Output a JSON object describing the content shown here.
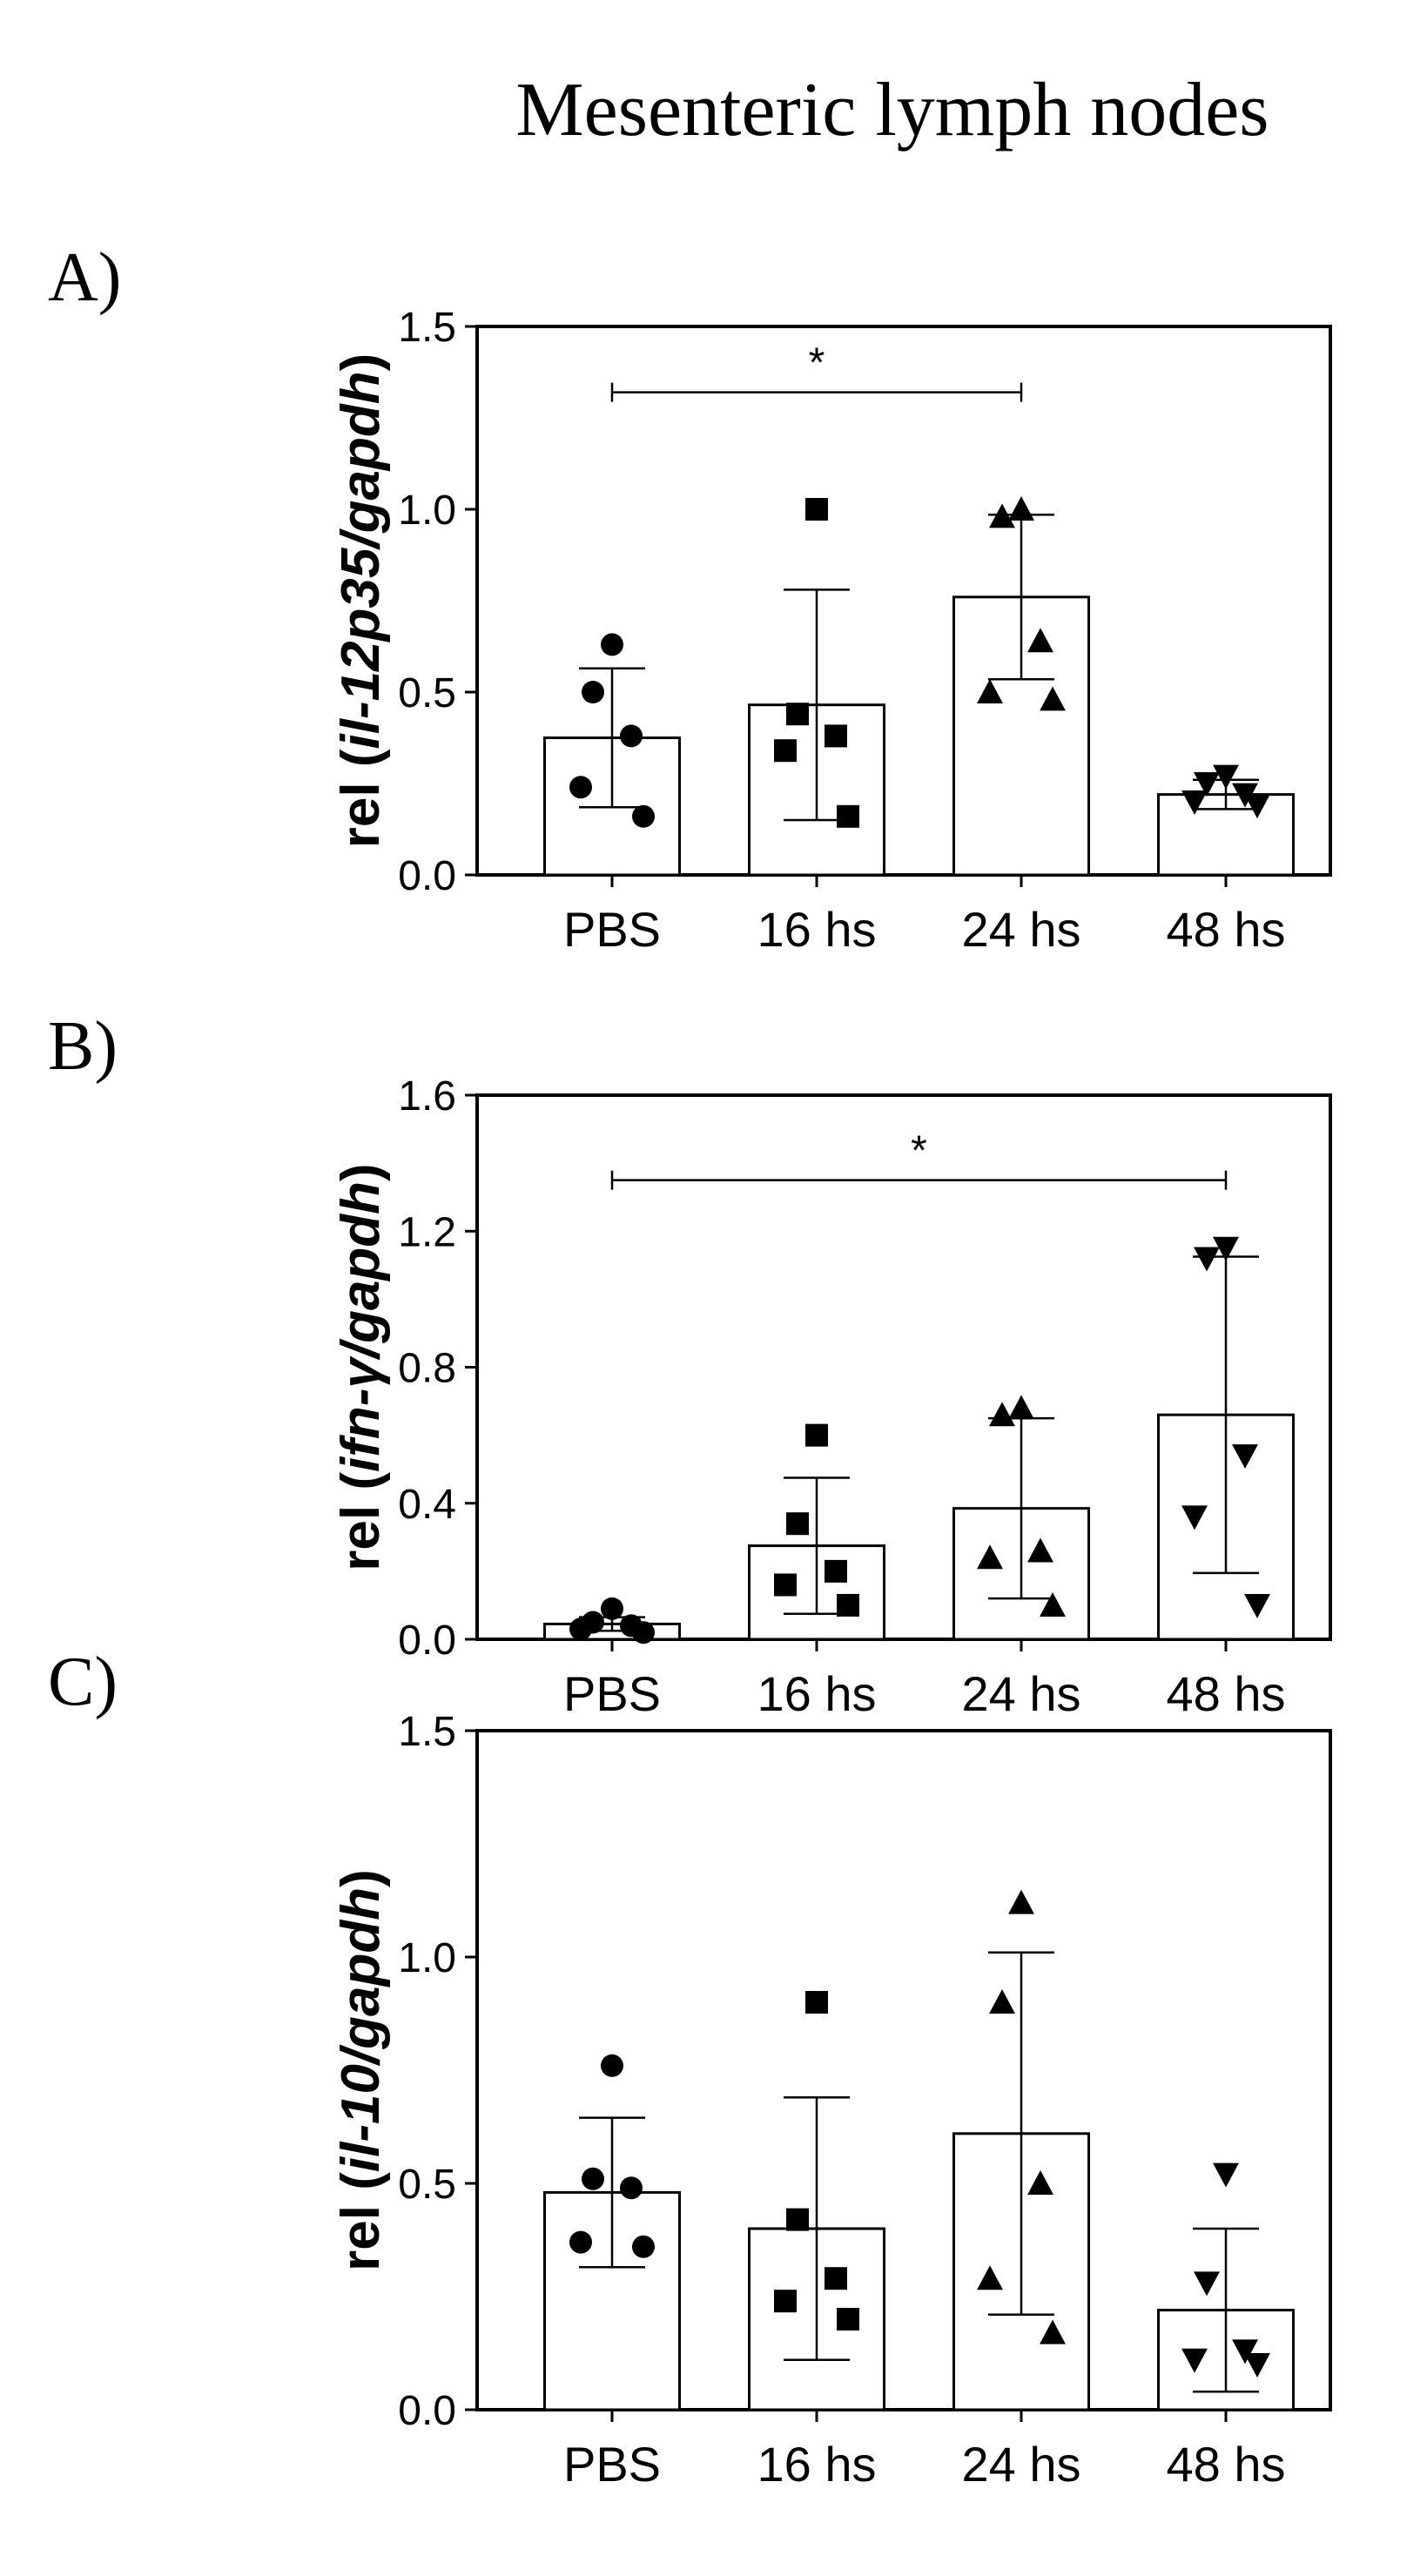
{
  "title": "Mesenteric lymph nodes",
  "chart_data": [
    {
      "panel_label": "A)",
      "type": "bar",
      "ylabel_prefix": "rel (",
      "ylabel_gene": "il-12p35/gapdh",
      "ylabel_suffix": ")",
      "ylim": [
        0,
        1.5
      ],
      "yticks": [
        0.0,
        0.5,
        1.0,
        1.5
      ],
      "ytick_labels": [
        "0.0",
        "0.5",
        "1.0",
        "1.5"
      ],
      "categories": [
        "PBS",
        "16 hs",
        "24 hs",
        "48 hs"
      ],
      "markers": [
        "circle",
        "square",
        "triangle-up",
        "triangle-down"
      ],
      "means": [
        0.375,
        0.465,
        0.76,
        0.22
      ],
      "sd": [
        0.19,
        0.315,
        0.225,
        0.04
      ],
      "points": [
        [
          0.63,
          0.5,
          0.38,
          0.24,
          0.16
        ],
        [
          1.0,
          0.44,
          0.38,
          0.34,
          0.16
        ],
        [
          1.0,
          0.98,
          0.64,
          0.5,
          0.48
        ],
        [
          0.27,
          0.25,
          0.22,
          0.2,
          0.19
        ]
      ],
      "significance": [
        {
          "from": 0,
          "to": 2,
          "label": "*",
          "y": 1.32
        }
      ]
    },
    {
      "panel_label": "B)",
      "type": "bar",
      "ylabel_prefix": "rel (",
      "ylabel_gene": "ifn-γ/gapdh",
      "ylabel_suffix": ")",
      "ylim": [
        0,
        1.6
      ],
      "yticks": [
        0.0,
        0.4,
        0.8,
        1.2,
        1.6
      ],
      "ytick_labels": [
        "0.0",
        "0.4",
        "0.8",
        "1.2",
        "1.6"
      ],
      "categories": [
        "PBS",
        "16 hs",
        "24 hs",
        "48 hs"
      ],
      "markers": [
        "circle",
        "square",
        "triangle-up",
        "triangle-down"
      ],
      "means": [
        0.045,
        0.275,
        0.385,
        0.66
      ],
      "sd": [
        0.02,
        0.2,
        0.265,
        0.465
      ],
      "points": [
        [
          0.09,
          0.05,
          0.04,
          0.03,
          0.02
        ],
        [
          0.6,
          0.34,
          0.2,
          0.16,
          0.1
        ],
        [
          0.68,
          0.66,
          0.26,
          0.24,
          0.1
        ],
        [
          1.15,
          1.12,
          0.54,
          0.36,
          0.1
        ]
      ],
      "significance": [
        {
          "from": 0,
          "to": 3,
          "label": "*",
          "y": 1.35
        }
      ]
    },
    {
      "panel_label": "C)",
      "type": "bar",
      "ylabel_prefix": "rel (",
      "ylabel_gene": "il-10/gapdh",
      "ylabel_suffix": ")",
      "ylim": [
        0,
        1.5
      ],
      "yticks": [
        0.0,
        0.5,
        1.0,
        1.5
      ],
      "ytick_labels": [
        "0.0",
        "0.5",
        "1.0",
        "1.5"
      ],
      "categories": [
        "PBS",
        "16 hs",
        "24 hs",
        "48 hs"
      ],
      "markers": [
        "circle",
        "square",
        "triangle-up",
        "triangle-down"
      ],
      "means": [
        0.48,
        0.4,
        0.61,
        0.22
      ],
      "sd": [
        0.165,
        0.29,
        0.4,
        0.18
      ],
      "points": [
        [
          0.76,
          0.51,
          0.49,
          0.37,
          0.36
        ],
        [
          0.9,
          0.42,
          0.29,
          0.24,
          0.2
        ],
        [
          1.12,
          0.9,
          0.5,
          0.29,
          0.17
        ],
        [
          0.52,
          0.28,
          0.13,
          0.11,
          0.1
        ]
      ],
      "significance": []
    }
  ]
}
